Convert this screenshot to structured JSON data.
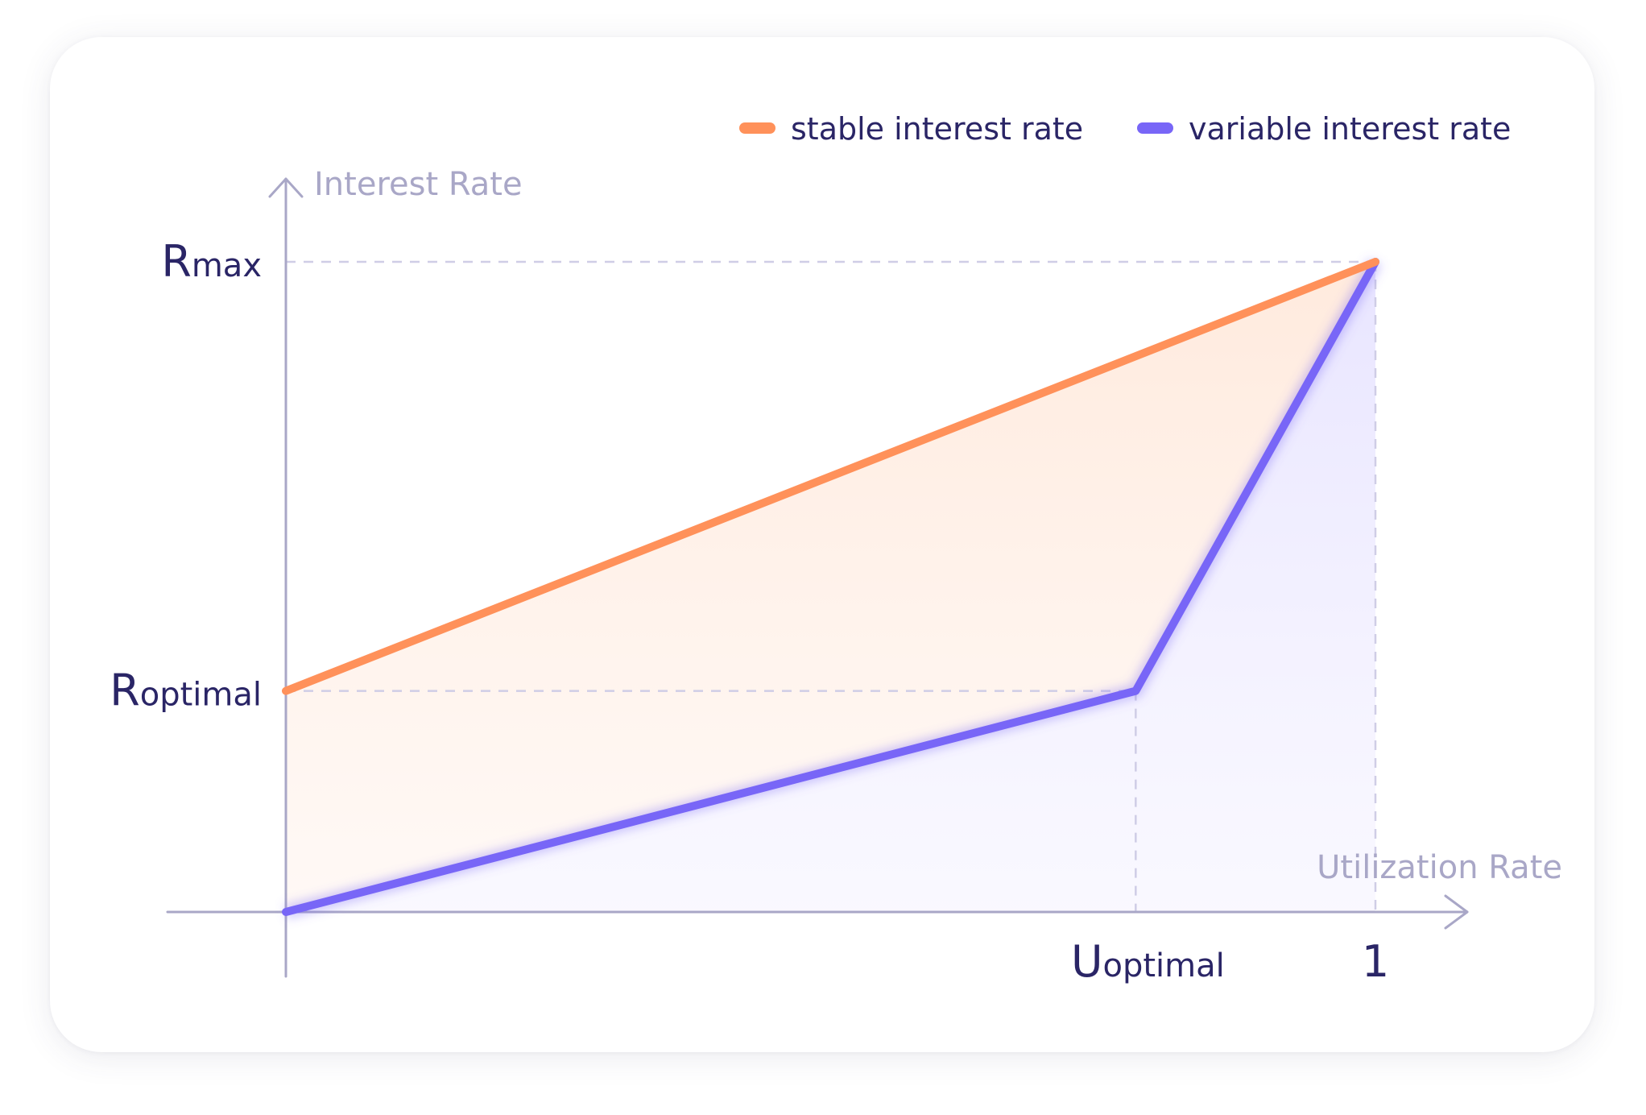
{
  "chart_data": {
    "type": "line",
    "xlabel": "Utilization Rate",
    "ylabel": "Interest Rate",
    "x_ticks": [
      {
        "main": "U",
        "sub": "optimal",
        "value": 0.78
      },
      {
        "main": "1",
        "sub": "",
        "value": 1
      }
    ],
    "y_ticks": [
      {
        "main": "R",
        "sub": "optimal",
        "value": 0.34
      },
      {
        "main": "R",
        "sub": "max",
        "value": 1
      }
    ],
    "xlim": [
      0,
      1
    ],
    "ylim": [
      0,
      1
    ],
    "series": [
      {
        "name": "stable interest rate",
        "color": "#ff915a",
        "x": [
          0,
          1
        ],
        "y": [
          0.34,
          1
        ]
      },
      {
        "name": "variable interest rate",
        "color": "#7866f7",
        "x": [
          0,
          0.78,
          1
        ],
        "y": [
          0,
          0.34,
          1
        ]
      }
    ],
    "grid": false,
    "legend_position": "top-right"
  }
}
